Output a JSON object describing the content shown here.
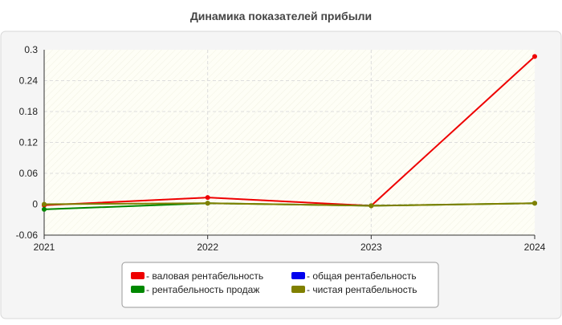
{
  "chart_data": {
    "type": "line",
    "title": "Динамика показателей прибыли",
    "x": [
      "2021",
      "2022",
      "2023",
      "2024"
    ],
    "ylim": [
      -0.06,
      0.3
    ],
    "yticks": [
      "-0.06",
      "0",
      "0.06",
      "0.12",
      "0.18",
      "0.24",
      "0.3"
    ],
    "grid": true,
    "legend_position": "bottom-center",
    "series": [
      {
        "name": "- валовая рентабельность",
        "color": "#ee0000",
        "values": [
          -0.002,
          0.013,
          -0.003,
          0.287
        ]
      },
      {
        "name": "- общая рентабельность",
        "color": "#0000ee",
        "values": [
          null,
          null,
          null,
          null
        ]
      },
      {
        "name": "- рентабельность продаж",
        "color": "#008800",
        "values": [
          -0.01,
          0.002,
          -0.003,
          0.002
        ]
      },
      {
        "name": "- чистая рентабельность",
        "color": "#808000",
        "values": [
          0.0,
          0.002,
          -0.003,
          0.002
        ]
      }
    ]
  }
}
